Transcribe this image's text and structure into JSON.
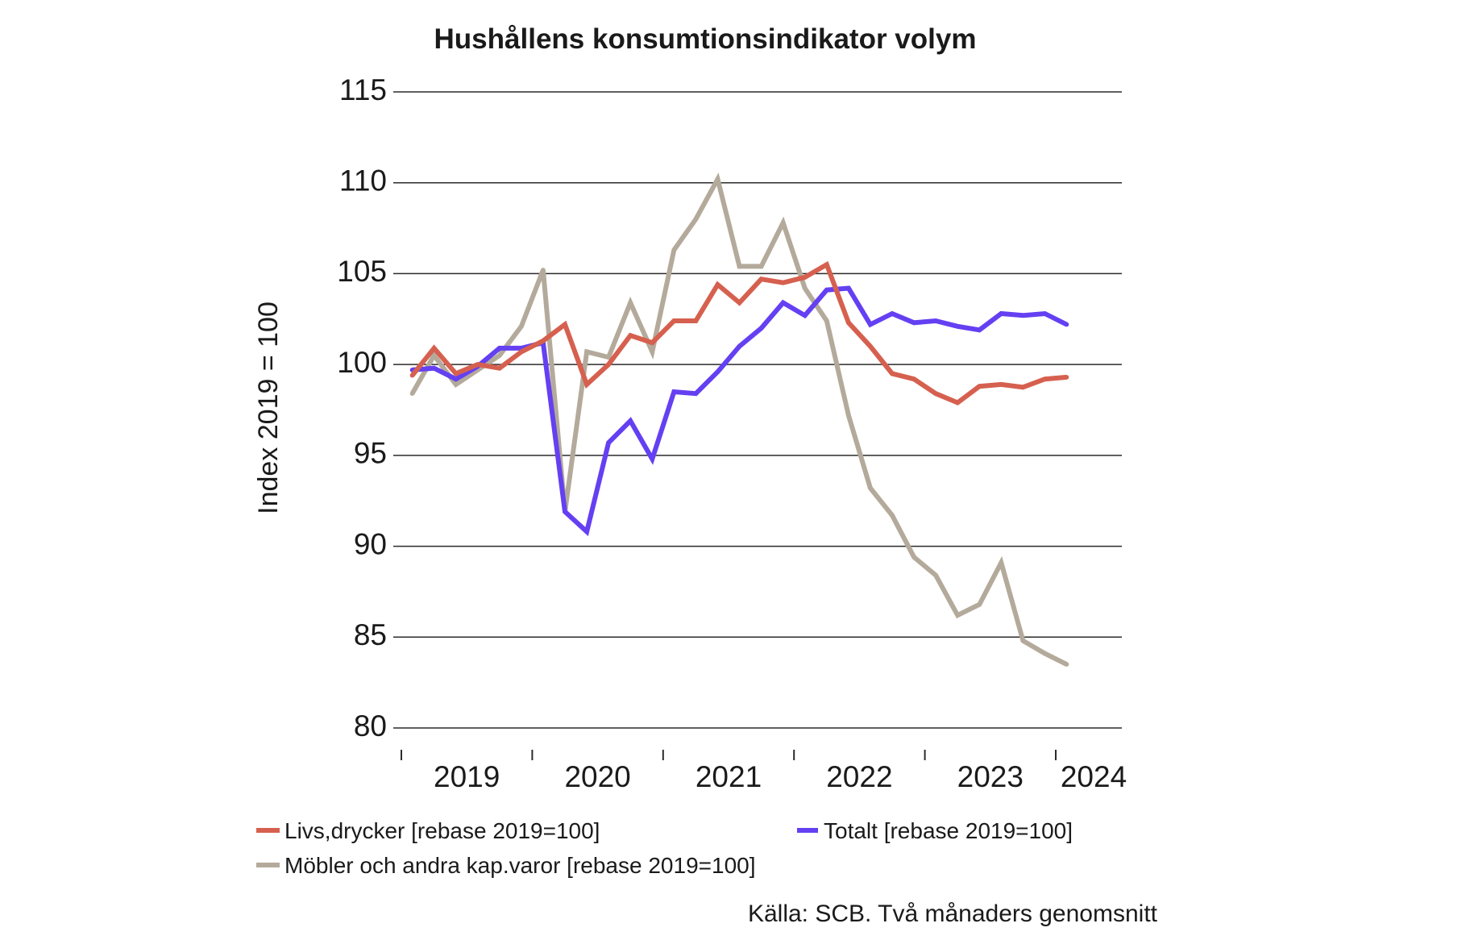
{
  "source": "Källa: SCB. Två månaders genomsnitt",
  "chart_data": {
    "type": "line",
    "title": "Hushållens konsumtionsindikator volym",
    "xlabel": "",
    "ylabel": "Index 2019 = 100",
    "ylim": [
      80,
      115
    ],
    "yticks": [
      80,
      85,
      90,
      95,
      100,
      105,
      110,
      115
    ],
    "xtick_labels": [
      "2019",
      "2020",
      "2021",
      "2022",
      "2023",
      "2024"
    ],
    "grid": "horizontal",
    "legend_position": "bottom",
    "x": [
      "2019-01",
      "2019-03",
      "2019-05",
      "2019-07",
      "2019-09",
      "2019-11",
      "2020-01",
      "2020-03",
      "2020-05",
      "2020-07",
      "2020-09",
      "2020-11",
      "2021-01",
      "2021-03",
      "2021-05",
      "2021-07",
      "2021-09",
      "2021-11",
      "2022-01",
      "2022-03",
      "2022-05",
      "2022-07",
      "2022-09",
      "2022-11",
      "2023-01",
      "2023-03",
      "2023-05",
      "2023-07",
      "2023-09",
      "2023-11",
      "2024-01"
    ],
    "series": [
      {
        "name": "Livs,drycker [rebase 2019=100]",
        "color": "#d6604f",
        "values": [
          99.4,
          100.9,
          99.5,
          100.0,
          99.8,
          100.7,
          101.3,
          102.2,
          98.9,
          100.0,
          101.6,
          101.2,
          102.4,
          102.4,
          104.4,
          103.4,
          104.7,
          104.5,
          104.8,
          105.5,
          102.3,
          101.0,
          99.5,
          99.2,
          98.4,
          97.9,
          98.8,
          98.9,
          98.75,
          99.2,
          99.3
        ]
      },
      {
        "name": "Totalt [rebase 2019=100]",
        "color": "#6440f2",
        "values": [
          99.7,
          99.8,
          99.2,
          99.9,
          100.9,
          100.9,
          101.2,
          91.9,
          90.8,
          95.7,
          96.9,
          94.8,
          98.5,
          98.4,
          99.6,
          101.0,
          102.0,
          103.4,
          102.7,
          104.1,
          104.2,
          102.2,
          102.8,
          102.3,
          102.4,
          102.1,
          101.9,
          102.8,
          102.7,
          102.8,
          102.2
        ]
      },
      {
        "name": "Möbler och andra kap.varor [rebase 2019=100]",
        "color": "#b4aa9b",
        "values": [
          98.4,
          100.5,
          98.9,
          99.7,
          100.5,
          102.1,
          105.2,
          91.9,
          100.7,
          100.4,
          103.4,
          100.7,
          106.3,
          108.0,
          110.2,
          105.4,
          105.4,
          107.8,
          104.2,
          102.4,
          97.2,
          93.2,
          91.7,
          89.4,
          88.4,
          86.2,
          86.8,
          89.1,
          84.8,
          84.1,
          83.5
        ]
      }
    ]
  }
}
